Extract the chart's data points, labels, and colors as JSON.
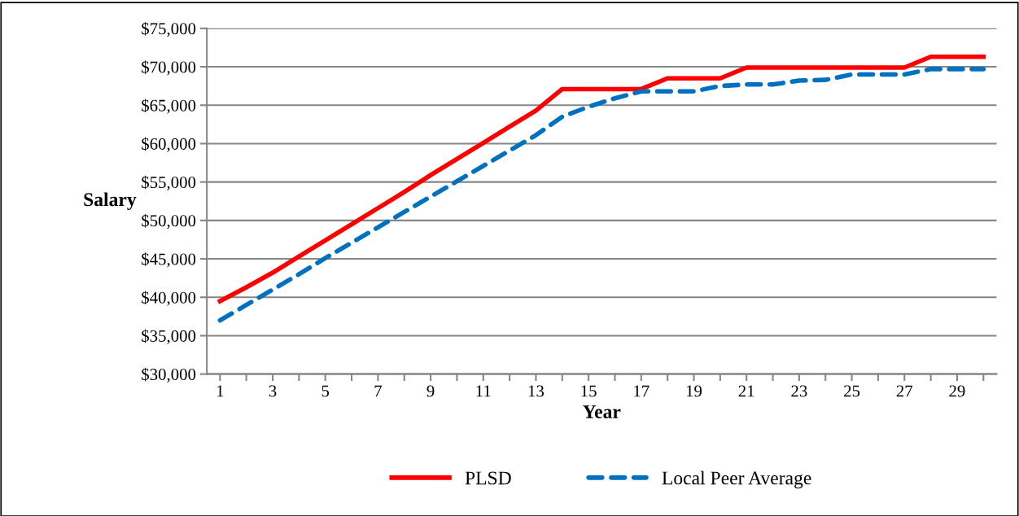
{
  "chart_data": {
    "type": "line",
    "xlabel": "Year",
    "ylabel": "Salary",
    "categories": [
      "1",
      null,
      "3",
      null,
      "5",
      null,
      "7",
      null,
      "9",
      null,
      "11",
      null,
      "13",
      null,
      "15",
      null,
      "17",
      null,
      "19",
      null,
      "21",
      null,
      "23",
      null,
      "25",
      null,
      "27",
      null,
      "29",
      null
    ],
    "series": [
      {
        "name": "PLSD",
        "color": "#ff0000",
        "line_style": "solid",
        "values": [
          39500,
          41300,
          43200,
          45300,
          47400,
          49500,
          51600,
          53700,
          55900,
          58000,
          60100,
          62200,
          64300,
          67100,
          67100,
          67100,
          67100,
          68500,
          68500,
          68500,
          69900,
          69900,
          69900,
          69900,
          69900,
          69900,
          69900,
          71300,
          71300,
          71300
        ]
      },
      {
        "name": "Local Peer Average",
        "color": "#0070c0",
        "line_style": "dashed",
        "values": [
          37000,
          39000,
          41000,
          43000,
          45100,
          47100,
          49100,
          51100,
          53100,
          55100,
          57100,
          59100,
          61100,
          63500,
          64800,
          65900,
          66800,
          66800,
          66800,
          67500,
          67700,
          67700,
          68200,
          68300,
          69000,
          69000,
          69000,
          69700,
          69700,
          69700
        ]
      }
    ],
    "ylim": [
      30000,
      75000
    ],
    "yticks": [
      {
        "value": 30000,
        "label": "$30,000"
      },
      {
        "value": 35000,
        "label": "$35,000"
      },
      {
        "value": 40000,
        "label": "$40,000"
      },
      {
        "value": 45000,
        "label": "$45,000"
      },
      {
        "value": 50000,
        "label": "$50,000"
      },
      {
        "value": 55000,
        "label": "$55,000"
      },
      {
        "value": 60000,
        "label": "$60,000"
      },
      {
        "value": 65000,
        "label": "$65,000"
      },
      {
        "value": 70000,
        "label": "$70,000"
      },
      {
        "value": 75000,
        "label": "$75,000"
      }
    ],
    "grid": "y",
    "legend": "bottom",
    "marker": "none"
  }
}
